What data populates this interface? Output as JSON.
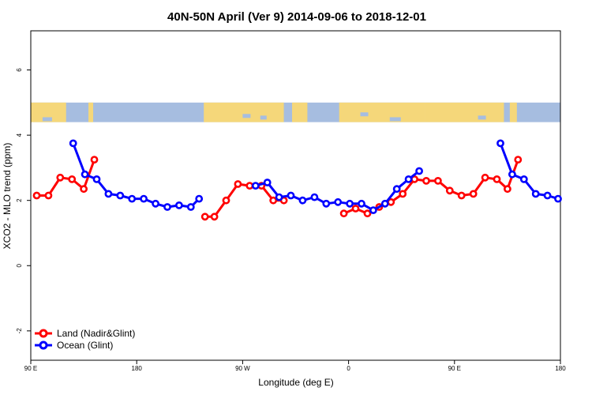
{
  "chart_data": {
    "type": "line",
    "title": "40N-50N April (Ver 9)   2014-09-06 to 2018-12-01",
    "xlabel": "Longitude (deg E)",
    "ylabel": "XCO2 - MLO trend (ppm)",
    "x_ticks": [
      {
        "x": 90,
        "label": "90 E"
      },
      {
        "x": 180,
        "label": "180"
      },
      {
        "x": 270,
        "label": "90 W"
      },
      {
        "x": 360,
        "label": "0"
      },
      {
        "x": 450,
        "label": "90 E"
      },
      {
        "x": 540,
        "label": "180"
      }
    ],
    "y_ticks": [
      {
        "y": -2,
        "label": "-2"
      },
      {
        "y": 0,
        "label": "0"
      },
      {
        "y": 2,
        "label": "2"
      },
      {
        "y": 4,
        "label": "4"
      },
      {
        "y": 6,
        "label": "6"
      }
    ],
    "xlim": [
      90,
      540
    ],
    "ylim": [
      -2.9,
      7.2
    ],
    "map_band": {
      "ymin": 4.4,
      "ymax": 5.0,
      "land_color": "#f5d77a",
      "ocean_color": "#a6bde0"
    },
    "series": [
      {
        "name": "Land (Nadir&Glint)",
        "color": "#ff0000",
        "segments": [
          [
            [
              95,
              2.15
            ],
            [
              105,
              2.15
            ],
            [
              115,
              2.7
            ],
            [
              125,
              2.65
            ],
            [
              135,
              2.35
            ],
            [
              144,
              3.25
            ]
          ],
          [
            [
              238,
              1.5
            ],
            [
              246,
              1.5
            ],
            [
              256,
              2.0
            ],
            [
              266,
              2.5
            ],
            [
              276,
              2.45
            ],
            [
              286,
              2.45
            ],
            [
              296,
              2.0
            ],
            [
              305,
              2.0
            ]
          ],
          [
            [
              356,
              1.6
            ],
            [
              366,
              1.75
            ],
            [
              376,
              1.6
            ],
            [
              386,
              1.8
            ],
            [
              396,
              1.95
            ],
            [
              406,
              2.2
            ],
            [
              416,
              2.65
            ],
            [
              426,
              2.6
            ],
            [
              436,
              2.6
            ],
            [
              446,
              2.3
            ],
            [
              456,
              2.15
            ],
            [
              466,
              2.2
            ],
            [
              476,
              2.7
            ],
            [
              486,
              2.65
            ],
            [
              495,
              2.35
            ],
            [
              504,
              3.25
            ]
          ]
        ]
      },
      {
        "name": "Ocean (Glint)",
        "color": "#0000ff",
        "segments": [
          [
            [
              126,
              3.75
            ],
            [
              136,
              2.8
            ],
            [
              146,
              2.65
            ],
            [
              156,
              2.2
            ],
            [
              166,
              2.15
            ],
            [
              176,
              2.05
            ],
            [
              186,
              2.05
            ],
            [
              196,
              1.9
            ],
            [
              206,
              1.8
            ],
            [
              216,
              1.85
            ],
            [
              226,
              1.8
            ],
            [
              233,
              2.05
            ]
          ],
          [
            [
              281,
              2.45
            ],
            [
              291,
              2.55
            ],
            [
              301,
              2.1
            ],
            [
              311,
              2.15
            ],
            [
              321,
              2.0
            ],
            [
              331,
              2.1
            ],
            [
              341,
              1.9
            ],
            [
              351,
              1.95
            ],
            [
              361,
              1.9
            ],
            [
              371,
              1.9
            ],
            [
              381,
              1.7
            ],
            [
              391,
              1.9
            ],
            [
              401,
              2.35
            ],
            [
              411,
              2.65
            ],
            [
              420,
              2.9
            ]
          ],
          [
            [
              489,
              3.75
            ],
            [
              499,
              2.8
            ],
            [
              509,
              2.65
            ],
            [
              519,
              2.2
            ],
            [
              529,
              2.15
            ],
            [
              538,
              2.05
            ]
          ]
        ]
      }
    ],
    "legend": {
      "position": "bottom-left",
      "entries": [
        "Land (Nadir&Glint)",
        "Ocean (Glint)"
      ]
    }
  }
}
